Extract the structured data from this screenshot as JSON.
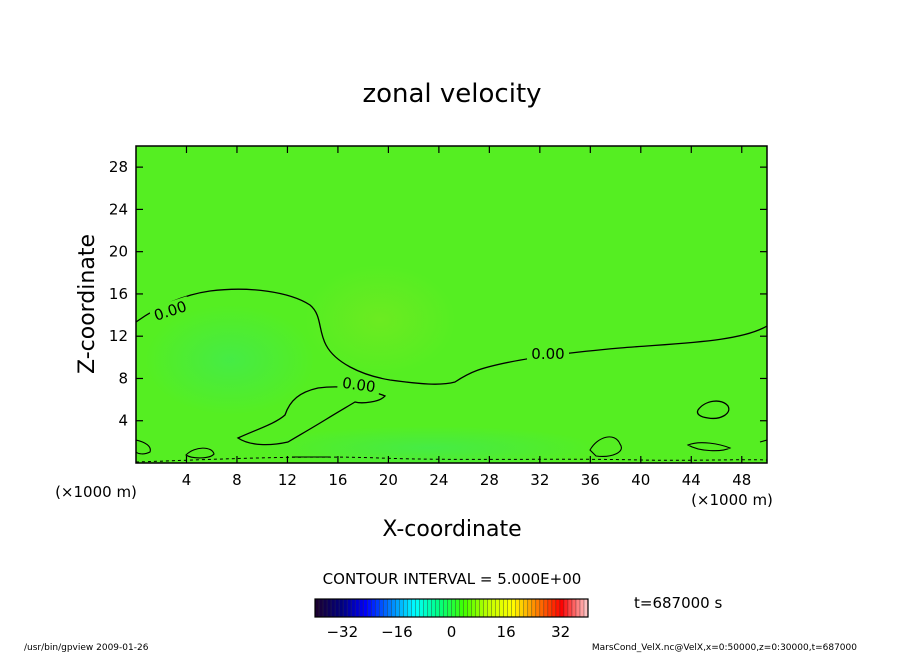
{
  "chart_data": {
    "type": "heatmap",
    "title": "zonal velocity",
    "xlabel": "X-coordinate",
    "ylabel": "Z-coordinate",
    "x_unit": "(×1000 m)",
    "y_unit": "(×1000 m)",
    "xlim": [
      0,
      50
    ],
    "ylim": [
      0,
      30
    ],
    "x_ticks": [
      4,
      8,
      12,
      16,
      20,
      24,
      28,
      32,
      36,
      40,
      44,
      48
    ],
    "y_ticks": [
      4,
      8,
      12,
      16,
      20,
      24,
      28
    ],
    "contour_interval_text": "CONTOUR INTERVAL = 5.000E+00",
    "contour_labels": [
      "0.00",
      "0.00",
      "0.00"
    ],
    "time_label": "t=687000 s",
    "colorbar": {
      "min": -40,
      "max": 40,
      "ticks": [
        -32,
        -16,
        0,
        16,
        32
      ],
      "colors": [
        "#1a0033",
        "#000080",
        "#0000ff",
        "#0080ff",
        "#00ffff",
        "#00ff80",
        "#40ff00",
        "#c0ff00",
        "#ffff00",
        "#ff8000",
        "#ff0000",
        "#ffc0c0"
      ]
    },
    "field_color": "#55ee22",
    "grid": false
  },
  "footer": {
    "left": "/usr/bin/gpview   2009-01-26",
    "right": "MarsCond_VelX.nc@VelX,x=0:50000,z=0:30000,t=687000"
  }
}
